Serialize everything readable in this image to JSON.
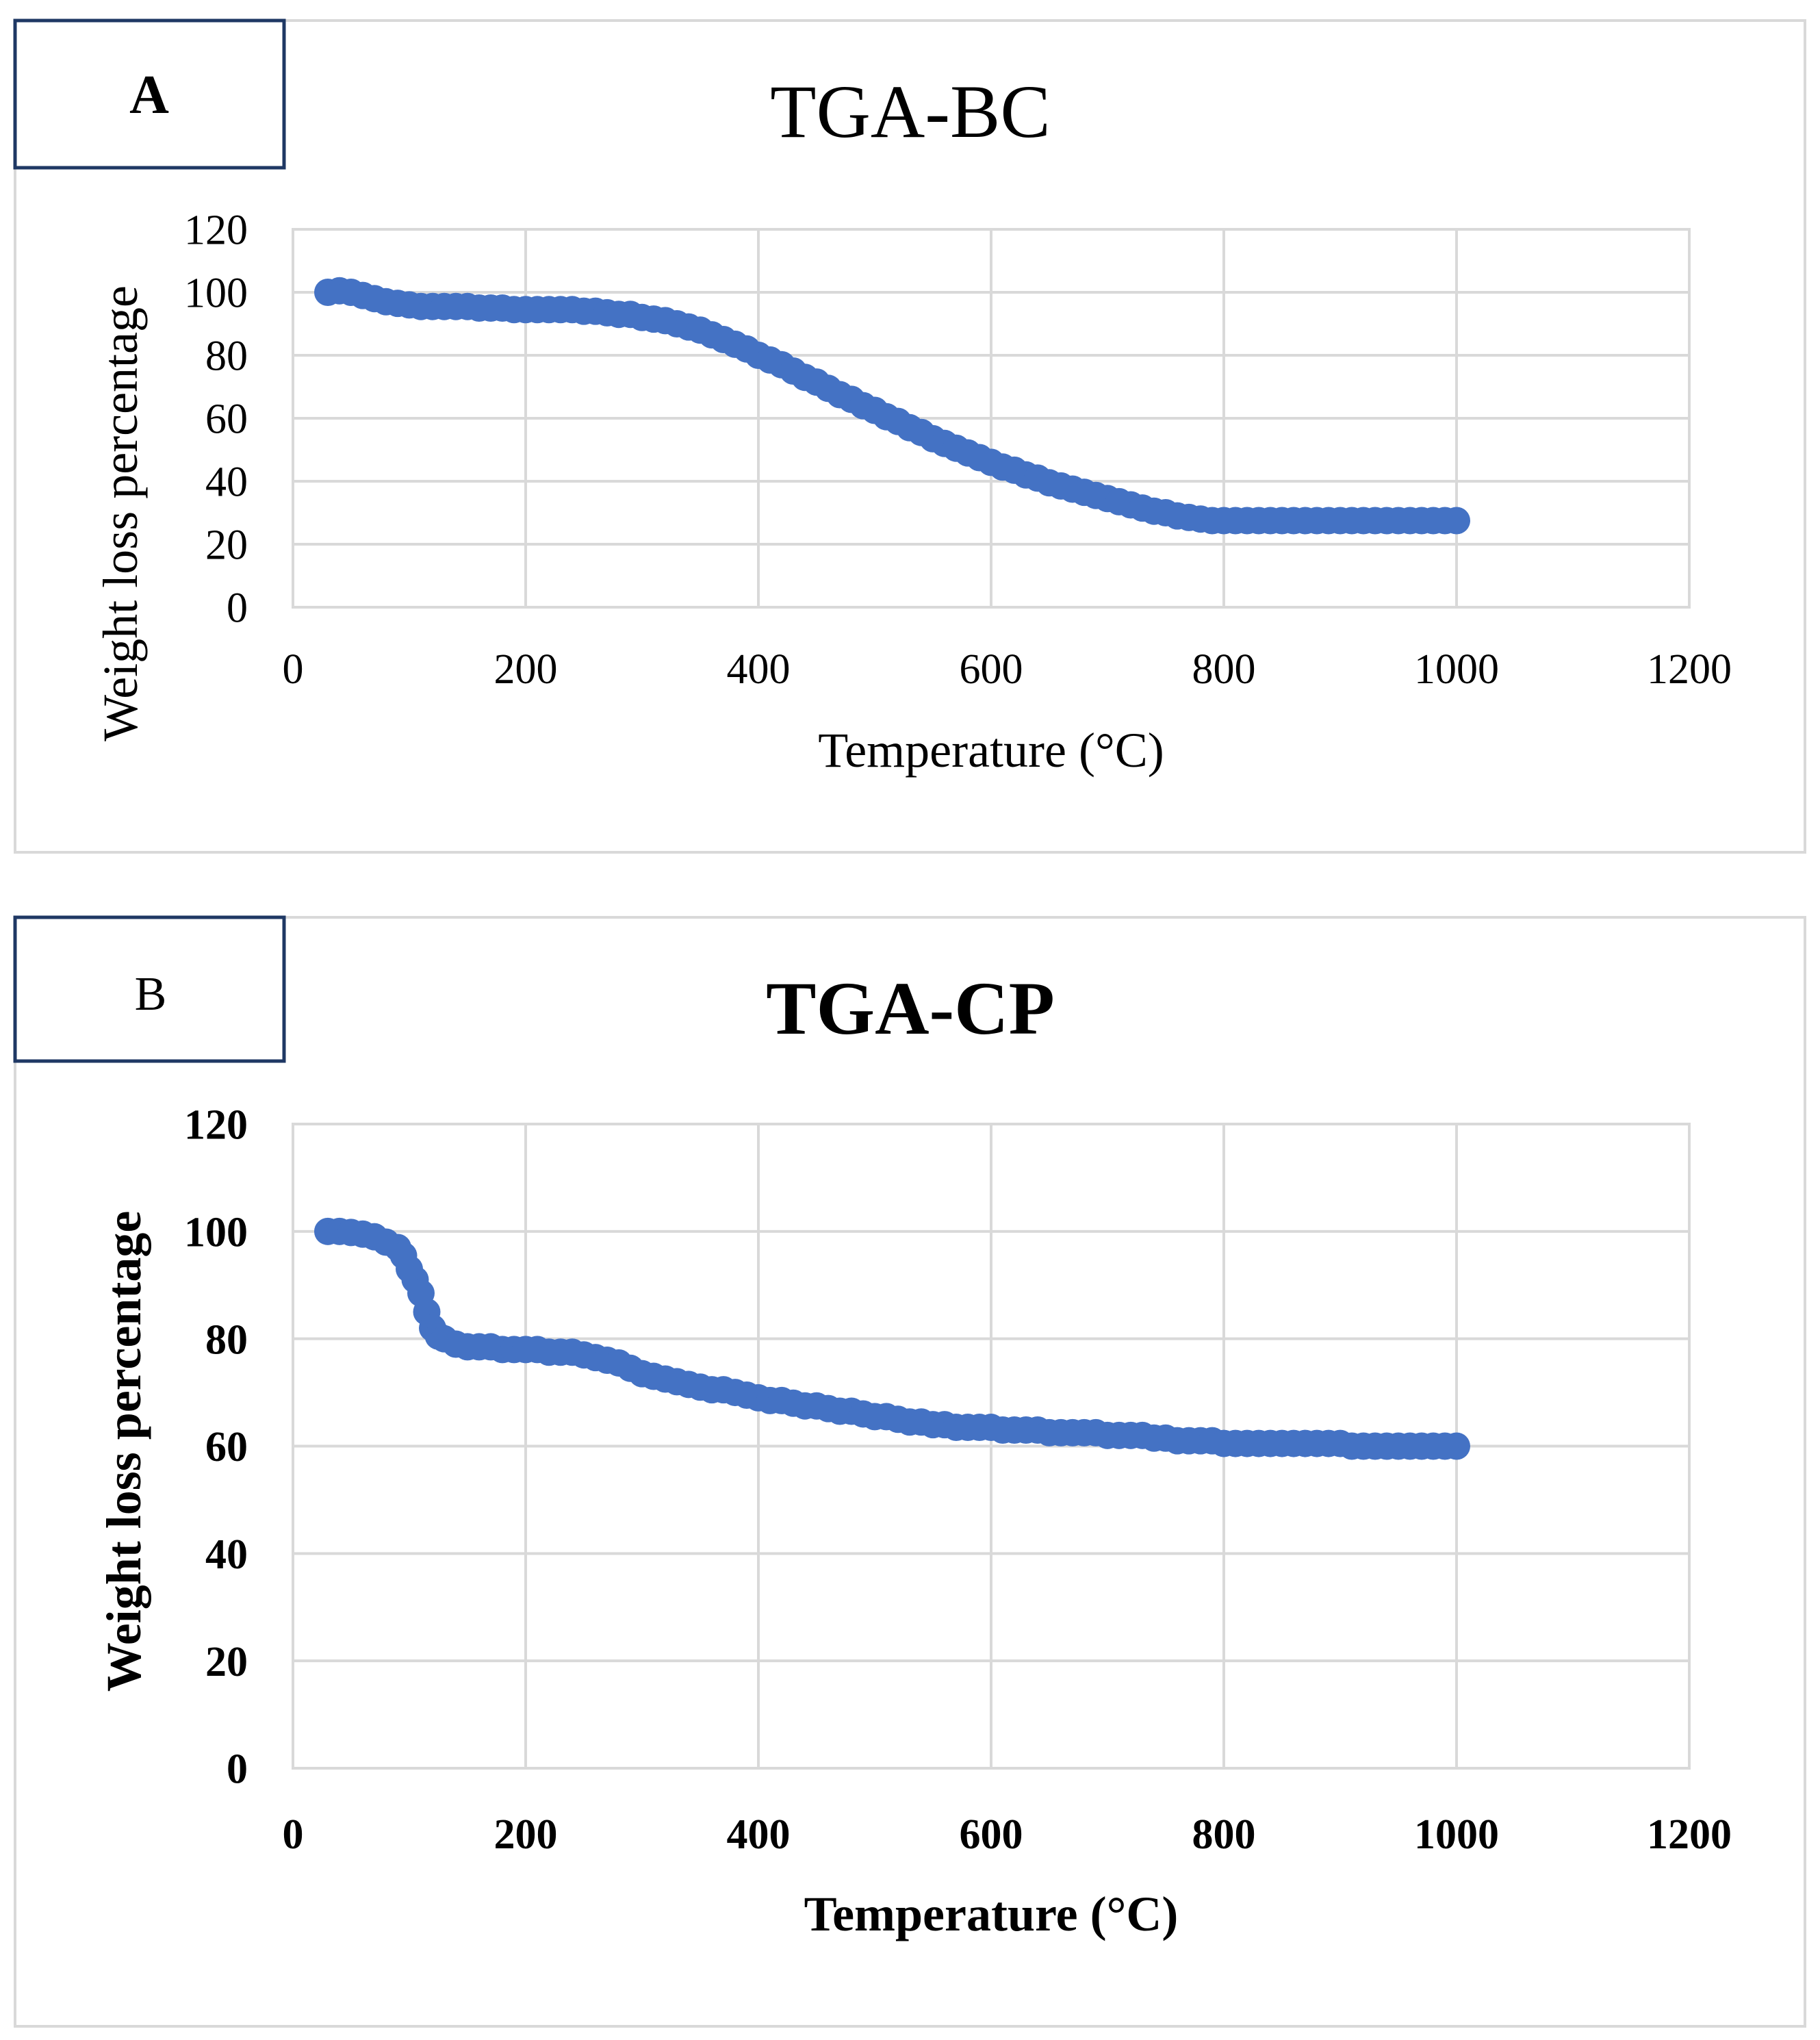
{
  "chart_data": [
    {
      "type": "scatter",
      "panel_label": "A",
      "title": "TGA-BC",
      "xlabel": "Temperature (°C)",
      "ylabel": "Weight loss percentage",
      "xlim": [
        0,
        1200
      ],
      "ylim": [
        0,
        120
      ],
      "xticks": [
        "0",
        "200",
        "400",
        "600",
        "800",
        "1000",
        "1200"
      ],
      "yticks": [
        "0",
        "20",
        "40",
        "60",
        "80",
        "100",
        "120"
      ],
      "grid": true,
      "bold": false,
      "series": [
        {
          "name": "TGA-BC",
          "color": "#4472c4",
          "x": [
            30,
            40,
            50,
            60,
            70,
            80,
            90,
            100,
            110,
            120,
            130,
            140,
            150,
            160,
            170,
            180,
            190,
            200,
            210,
            220,
            230,
            240,
            250,
            260,
            270,
            280,
            290,
            300,
            310,
            320,
            330,
            340,
            350,
            360,
            370,
            380,
            390,
            400,
            410,
            420,
            430,
            440,
            450,
            460,
            470,
            480,
            490,
            500,
            510,
            520,
            530,
            540,
            550,
            560,
            570,
            580,
            590,
            600,
            610,
            620,
            630,
            640,
            650,
            660,
            670,
            680,
            690,
            700,
            710,
            720,
            730,
            740,
            750,
            760,
            770,
            780,
            790,
            800,
            810,
            820,
            830,
            840,
            850,
            860,
            870,
            880,
            890,
            900,
            910,
            920,
            930,
            940,
            950,
            960,
            970,
            980,
            990,
            1000
          ],
          "y": [
            100,
            100.5,
            100,
            99,
            98,
            97,
            96.5,
            96,
            95.5,
            95.5,
            95.5,
            95.5,
            95.5,
            95,
            95,
            95,
            94.5,
            94.5,
            94.5,
            94.5,
            94.5,
            94.5,
            94,
            94,
            93.5,
            93,
            93,
            92,
            91.5,
            91,
            90,
            89,
            88,
            86.5,
            85,
            83.5,
            82,
            80,
            78.5,
            77,
            75,
            73,
            71.5,
            69.5,
            67.5,
            66,
            64,
            62.5,
            60.5,
            59,
            57,
            55.5,
            53.5,
            52,
            50.5,
            49,
            47.5,
            46,
            44.5,
            43.5,
            42,
            41,
            39.5,
            38.5,
            37.5,
            36.5,
            35.5,
            34.5,
            33.5,
            32.5,
            31.5,
            30.5,
            30,
            29,
            28.5,
            28,
            27.5,
            27.5,
            27.5,
            27.5,
            27.5,
            27.5,
            27.5,
            27.5,
            27.5,
            27.5,
            27.5,
            27.5,
            27.5,
            27.5,
            27.5,
            27.5,
            27.5,
            27.5,
            27.5,
            27.5,
            27.5,
            27.5
          ]
        }
      ]
    },
    {
      "type": "scatter",
      "panel_label": "B",
      "title": "TGA-CP",
      "xlabel": "Temperature (°C)",
      "ylabel": "Weight loss percentage",
      "xlim": [
        0,
        1200
      ],
      "ylim": [
        0,
        120
      ],
      "xticks": [
        "0",
        "200",
        "400",
        "600",
        "800",
        "1000",
        "1200"
      ],
      "yticks": [
        "0",
        "20",
        "40",
        "60",
        "80",
        "100",
        "120"
      ],
      "grid": true,
      "bold": true,
      "series": [
        {
          "name": "TGA-CP",
          "color": "#4472c4",
          "x": [
            30,
            40,
            50,
            60,
            70,
            80,
            90,
            95,
            100,
            105,
            110,
            115,
            120,
            125,
            130,
            140,
            150,
            160,
            170,
            180,
            190,
            200,
            210,
            220,
            230,
            240,
            250,
            260,
            270,
            280,
            290,
            300,
            310,
            320,
            330,
            340,
            350,
            360,
            370,
            380,
            390,
            400,
            410,
            420,
            430,
            440,
            450,
            460,
            470,
            480,
            490,
            500,
            510,
            520,
            530,
            540,
            550,
            560,
            570,
            580,
            590,
            600,
            610,
            620,
            630,
            640,
            650,
            660,
            670,
            680,
            690,
            700,
            710,
            720,
            730,
            740,
            750,
            760,
            770,
            780,
            790,
            800,
            810,
            820,
            830,
            840,
            850,
            860,
            870,
            880,
            890,
            900,
            910,
            920,
            930,
            940,
            950,
            960,
            970,
            980,
            990,
            1000
          ],
          "y": [
            100,
            100,
            99.8,
            99.5,
            99,
            98,
            97,
            95.5,
            93,
            91,
            88.5,
            85,
            82,
            80.5,
            80,
            79,
            78.5,
            78.5,
            78.5,
            78,
            78,
            78,
            78,
            77.5,
            77.5,
            77.5,
            77,
            76.5,
            76,
            75.5,
            74.5,
            73.5,
            73,
            72.5,
            72,
            71.5,
            71,
            70.5,
            70.5,
            70,
            69.5,
            69,
            68.5,
            68.5,
            68,
            67.5,
            67.5,
            67,
            66.5,
            66.5,
            66,
            65.5,
            65.5,
            65,
            64.5,
            64.5,
            64,
            64,
            63.5,
            63.5,
            63.5,
            63.5,
            63,
            63,
            63,
            63,
            62.5,
            62.5,
            62.5,
            62.5,
            62.5,
            62,
            62,
            62,
            62,
            61.5,
            61.5,
            61,
            61,
            61,
            61,
            60.5,
            60.5,
            60.5,
            60.5,
            60.5,
            60.5,
            60.5,
            60.5,
            60.5,
            60.5,
            60.5,
            60,
            60,
            60,
            60,
            60,
            60,
            60,
            60,
            60,
            60
          ]
        }
      ]
    }
  ]
}
